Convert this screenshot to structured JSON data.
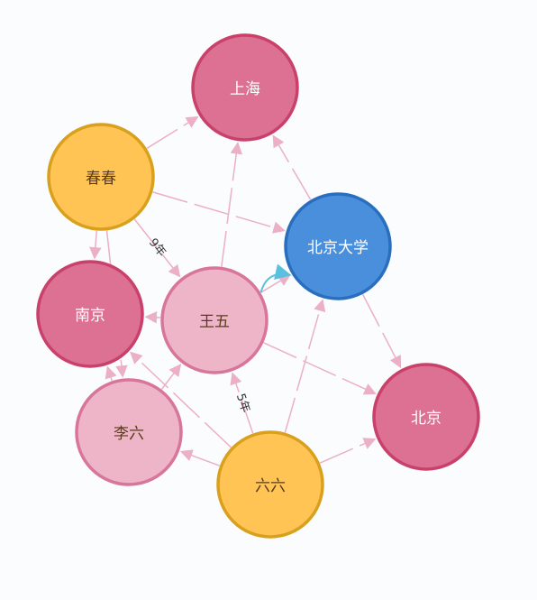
{
  "nodes": [
    {
      "label": "上海",
      "color": "#dc7193"
    },
    {
      "label": "春春",
      "color": "#ffc454"
    },
    {
      "label": "北京大学",
      "color": "#4a8fdb"
    },
    {
      "label": "南京",
      "color": "#dc7193"
    },
    {
      "label": "王五",
      "color": "#eeb5c9"
    },
    {
      "label": "北京",
      "color": "#dc7193"
    },
    {
      "label": "李六",
      "color": "#eeb5c9"
    },
    {
      "label": "六六",
      "color": "#ffc454"
    }
  ],
  "edges": [
    {
      "source": "春春",
      "target": "上海"
    },
    {
      "source": "春春",
      "target": "北京大学"
    },
    {
      "source": "春春",
      "target": "王五",
      "label": "9年"
    },
    {
      "source": "春春",
      "target": "南京"
    },
    {
      "source": "春春",
      "target": "李六"
    },
    {
      "source": "王五",
      "target": "上海"
    },
    {
      "source": "王五",
      "target": "北京大学"
    },
    {
      "source": "王五",
      "target": "南京"
    },
    {
      "source": "王五",
      "target": "北京"
    },
    {
      "source": "李六",
      "target": "王五"
    },
    {
      "source": "李六",
      "target": "南京"
    },
    {
      "source": "北京大学",
      "target": "上海"
    },
    {
      "source": "北京大学",
      "target": "北京"
    },
    {
      "source": "六六",
      "target": "王五",
      "label": "5年"
    },
    {
      "source": "六六",
      "target": "北京大学"
    },
    {
      "source": "六六",
      "target": "北京"
    },
    {
      "source": "六六",
      "target": "李六"
    },
    {
      "source": "六六",
      "target": "南京"
    },
    {
      "source": "王五",
      "target": "北京大学",
      "color": "#5bc0de"
    }
  ]
}
